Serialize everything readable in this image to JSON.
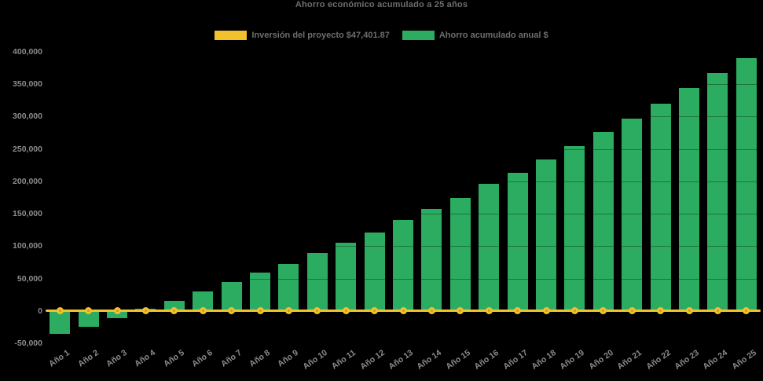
{
  "title": "Ahorro económico acumulado a 25 años",
  "colors": {
    "background": "#000000",
    "investment_yellow": "#F0C32E",
    "marker_core": "#D79B1D",
    "savings_green": "#2BAC60",
    "title_text": "#6e6e6e",
    "tick_text": "#8c8c8c"
  },
  "chart_data": {
    "type": "bar",
    "title": "Ahorro económico acumulado a 25 años",
    "xlabel": "",
    "ylabel": "",
    "ylim": [
      -50000,
      400000
    ],
    "ytick_step": 50000,
    "ytick_labels": [
      "400,000",
      "350,000",
      "300,000",
      "250,000",
      "200,000",
      "150,000",
      "100,000",
      "50,000",
      "0",
      "-50,000"
    ],
    "grid": true,
    "legend_position": "top",
    "categories": [
      "Año 1",
      "Año 2",
      "Año 3",
      "Año 4",
      "Año 5",
      "Año 6",
      "Año 7",
      "Año 8",
      "Año 9",
      "Año 10",
      "Año 11",
      "Año 12",
      "Año 13",
      "Año 14",
      "Año 15",
      "Año 16",
      "Año 17",
      "Año 18",
      "Año 19",
      "Año 20",
      "Año 21",
      "Año 22",
      "Año 23",
      "Año 24",
      "Año 25"
    ],
    "series": [
      {
        "name": "Inversión del proyecto $47,401.87",
        "type": "line",
        "color": "#F0C32E",
        "values": [
          0,
          0,
          0,
          0,
          0,
          0,
          0,
          0,
          0,
          0,
          0,
          0,
          0,
          0,
          0,
          0,
          0,
          0,
          0,
          0,
          0,
          0,
          0,
          0,
          0
        ]
      },
      {
        "name": "Ahorro acumulado anual $",
        "type": "bar",
        "color": "#2BAC60",
        "values": [
          -35500,
          -24000,
          -11500,
          3500,
          16000,
          29500,
          44500,
          59000,
          72500,
          89000,
          105500,
          121500,
          140000,
          157500,
          175000,
          196000,
          213000,
          233500,
          254500,
          276000,
          297500,
          320500,
          344000,
          367000,
          390500
        ]
      }
    ]
  }
}
